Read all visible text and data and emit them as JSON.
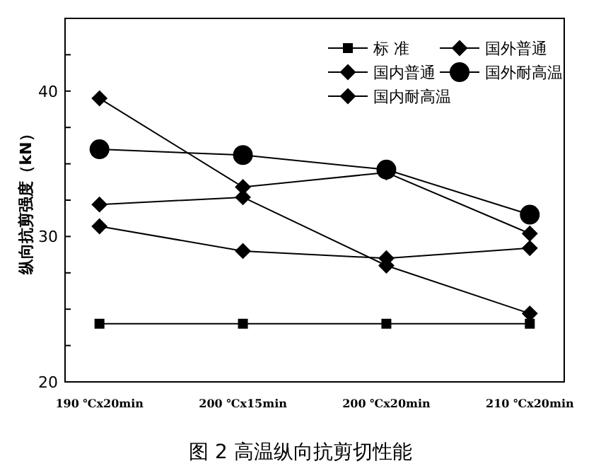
{
  "chart_data": {
    "type": "line",
    "title": "图 2 高温纵向抗剪切性能",
    "ylabel": "纵向抗剪强度（kN）",
    "categories": [
      "190 ℃x20min",
      "200 ℃x15min",
      "200 ℃x20min",
      "210 ℃x20min"
    ],
    "ylim": [
      20,
      45
    ],
    "yticks": [
      20,
      {
        "value": 22.5,
        "label": null
      },
      {
        "value": 25,
        "label": null
      },
      {
        "value": 27.5,
        "label": null
      },
      30,
      {
        "value": 32.5,
        "label": null
      },
      {
        "value": 35,
        "label": null
      },
      {
        "value": 37.5,
        "label": null
      },
      40,
      {
        "value": 42.5,
        "label": null
      },
      {
        "value": 45,
        "label": null
      }
    ],
    "grid": false,
    "legend": "top right",
    "line_style": "solid",
    "series": [
      {
        "name": "标 准",
        "color": "#000000",
        "marker": "square",
        "values": [
          24,
          24,
          24,
          24
        ]
      },
      {
        "name": "国外普通",
        "color": "#000000",
        "marker": "diamond",
        "values": [
          32.2,
          32.7,
          28.0,
          24.7
        ]
      },
      {
        "name": "国内普通",
        "color": "#000000",
        "marker": "diamond",
        "values": [
          30.7,
          29.0,
          28.5,
          29.2
        ]
      },
      {
        "name": "国外耐高温",
        "color": "#000000",
        "marker": "circle",
        "values": [
          36.0,
          35.6,
          34.6,
          31.5
        ]
      },
      {
        "name": "国内耐高温",
        "color": "#000000",
        "marker": "diamond",
        "values": [
          39.5,
          33.4,
          34.4,
          30.2
        ]
      }
    ]
  }
}
